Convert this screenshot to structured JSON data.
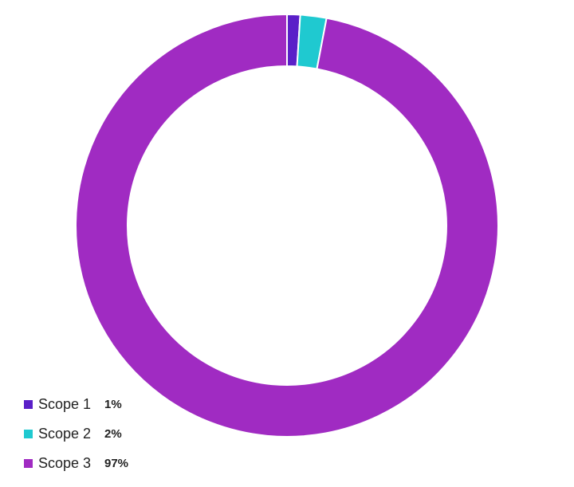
{
  "chart_data": {
    "type": "donut",
    "categories": [
      "Scope 1",
      "Scope 2",
      "Scope 3"
    ],
    "values": [
      1,
      2,
      97
    ],
    "value_labels": [
      "1%",
      "2%",
      "97%"
    ],
    "colors": [
      "#5a1fc8",
      "#1fc9d0",
      "#a02bc2"
    ],
    "legend": "bottom-left"
  }
}
